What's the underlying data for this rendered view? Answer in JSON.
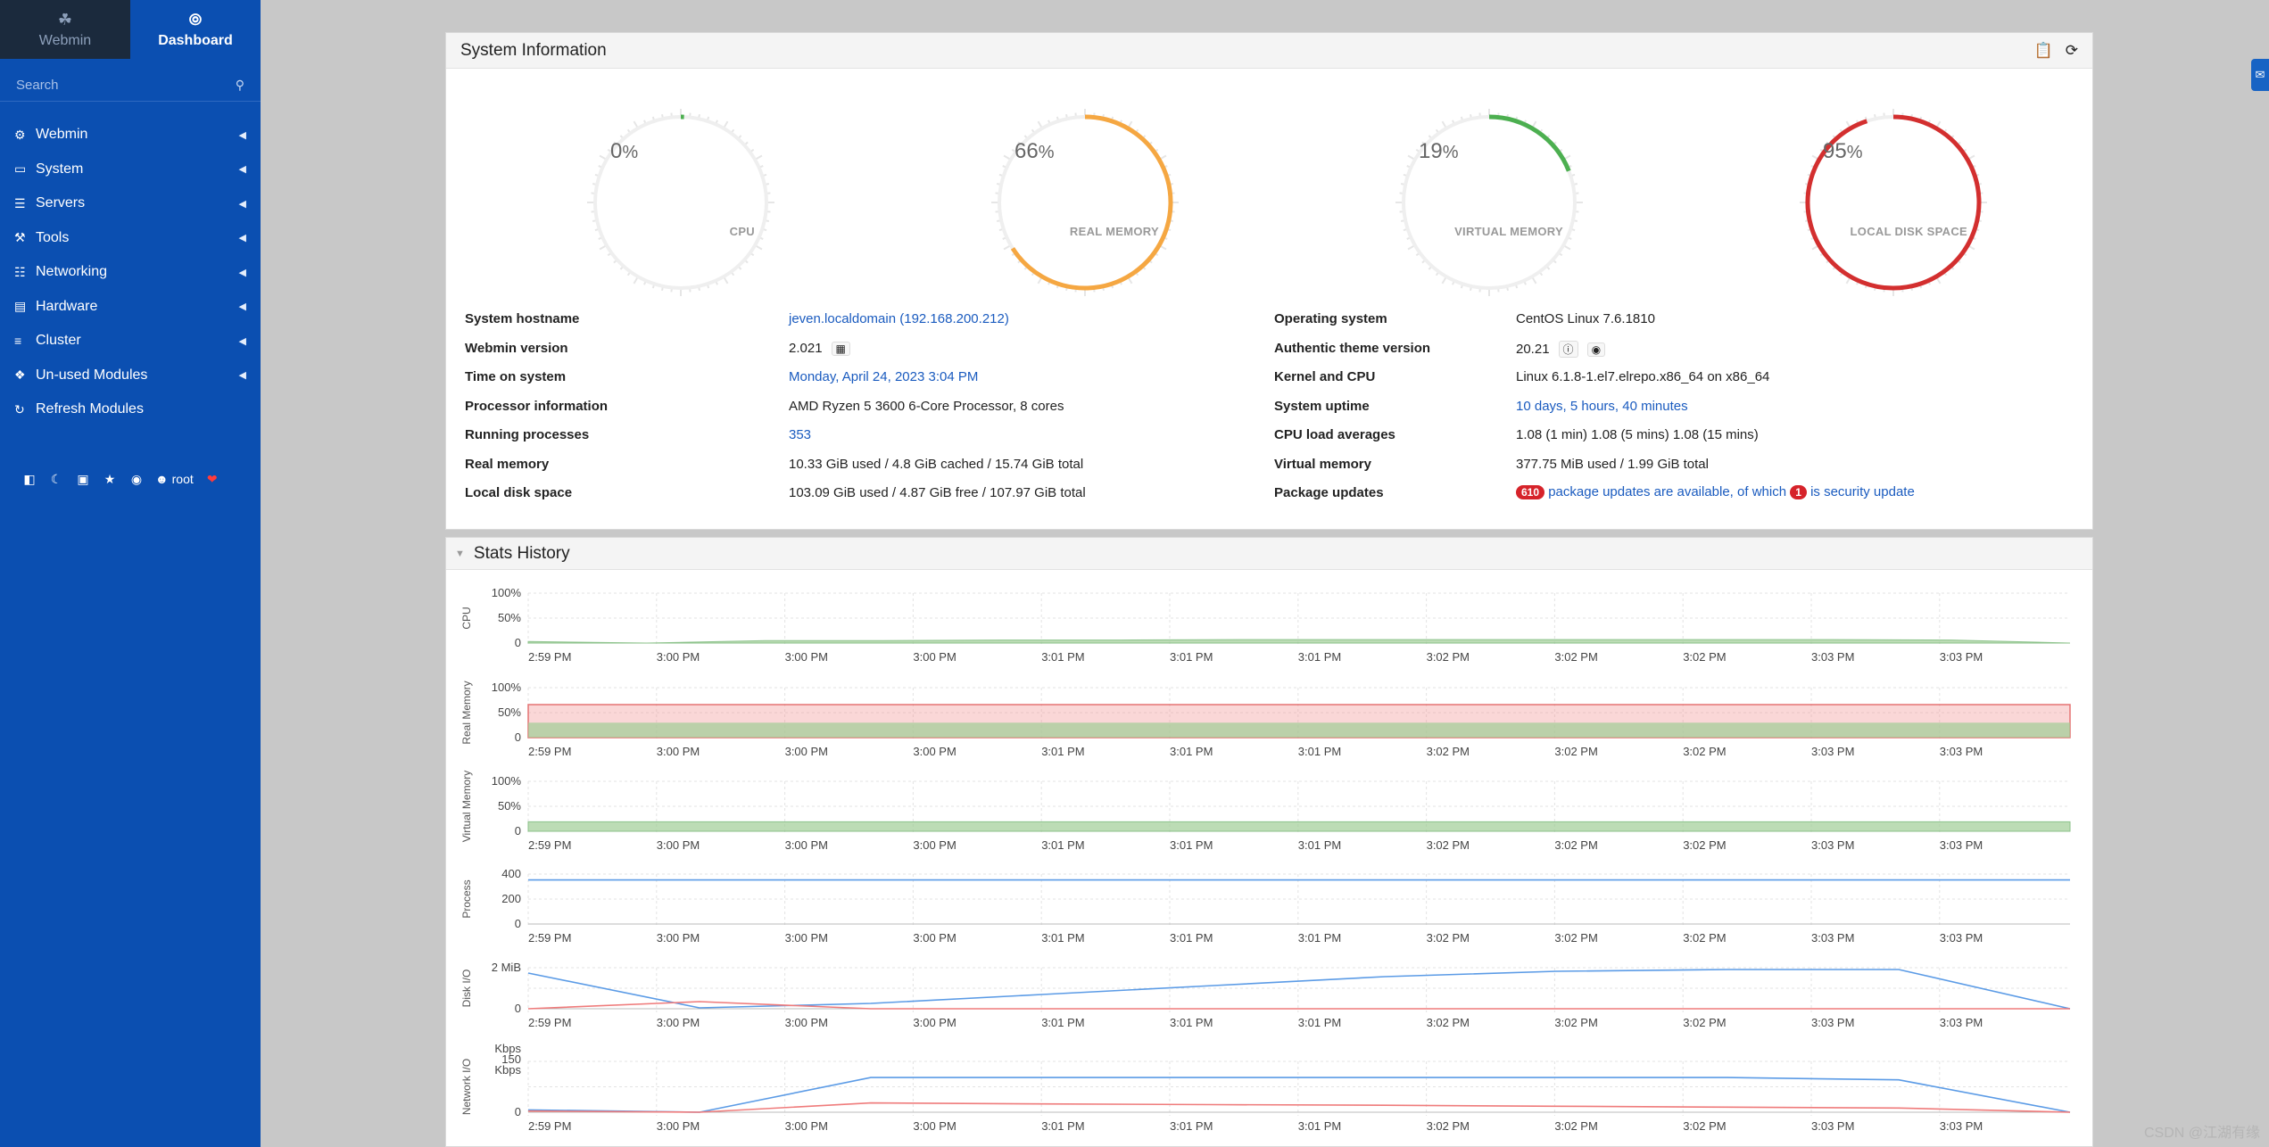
{
  "sidebar": {
    "tabs": [
      {
        "label": "Webmin",
        "icon": "webmin-logo-icon"
      },
      {
        "label": "Dashboard",
        "icon": "dashboard-icon"
      }
    ],
    "search_placeholder": "Search",
    "menu": [
      {
        "label": "Webmin",
        "icon": "gear-icon"
      },
      {
        "label": "System",
        "icon": "laptop-icon"
      },
      {
        "label": "Servers",
        "icon": "server-icon"
      },
      {
        "label": "Tools",
        "icon": "tools-icon"
      },
      {
        "label": "Networking",
        "icon": "network-icon"
      },
      {
        "label": "Hardware",
        "icon": "hard-drive-icon"
      },
      {
        "label": "Cluster",
        "icon": "layers-icon"
      },
      {
        "label": "Un-used Modules",
        "icon": "puzzle-icon"
      },
      {
        "label": "Refresh Modules",
        "icon": "refresh-icon"
      }
    ],
    "user": "root"
  },
  "sysinfo": {
    "title": "System Information",
    "gauges": [
      {
        "label": "CPU",
        "value": 0,
        "color": "#4caf50"
      },
      {
        "label": "REAL MEMORY",
        "value": 66,
        "color": "#f5a742"
      },
      {
        "label": "VIRTUAL MEMORY",
        "value": 19,
        "color": "#4caf50"
      },
      {
        "label": "LOCAL DISK SPACE",
        "value": 95,
        "color": "#d32f2f"
      }
    ],
    "pct_sign": "%",
    "left": [
      {
        "label": "System hostname",
        "value": "jeven.localdomain (192.168.200.212)",
        "link": true
      },
      {
        "label": "Webmin version",
        "value": "2.021",
        "link": false
      },
      {
        "label": "Time on system",
        "value": "Monday, April 24, 2023 3:04 PM",
        "link": true
      },
      {
        "label": "Processor information",
        "value": "AMD Ryzen 5 3600 6-Core Processor, 8 cores",
        "link": false
      },
      {
        "label": "Running processes",
        "value": "353",
        "link": true
      },
      {
        "label": "Real memory",
        "value": "10.33 GiB used / 4.8 GiB cached / 15.74 GiB total",
        "link": false
      },
      {
        "label": "Local disk space",
        "value": "103.09 GiB used / 4.87 GiB free / 107.97 GiB total",
        "link": false
      }
    ],
    "right": [
      {
        "label": "Operating system",
        "value": "CentOS Linux 7.6.1810",
        "link": false
      },
      {
        "label": "Authentic theme version",
        "value": "20.21",
        "link": false
      },
      {
        "label": "Kernel and CPU",
        "value": "Linux 6.1.8-1.el7.elrepo.x86_64 on x86_64",
        "link": false
      },
      {
        "label": "System uptime",
        "value": "10 days, 5 hours, 40 minutes",
        "link": true
      },
      {
        "label": "CPU load averages",
        "value": "1.08 (1 min) 1.08 (5 mins) 1.08 (15 mins)",
        "link": false
      },
      {
        "label": "Virtual memory",
        "value": "377.75 MiB used / 1.99 GiB total",
        "link": false
      }
    ],
    "package_updates": {
      "label": "Package updates",
      "count": "610",
      "text1": "package updates are available, of which",
      "security_count": "1",
      "text2": "is security update"
    }
  },
  "stats": {
    "title": "Stats History",
    "time_labels": [
      "2:59 PM",
      "3:00 PM",
      "3:00 PM",
      "3:00 PM",
      "3:01 PM",
      "3:01 PM",
      "3:01 PM",
      "3:02 PM",
      "3:02 PM",
      "3:02 PM",
      "3:03 PM",
      "3:03 PM"
    ],
    "charts": [
      {
        "name": "CPU",
        "ticks": [
          "100%",
          "50%",
          "0"
        ]
      },
      {
        "name": "Real Memory",
        "ticks": [
          "100%",
          "50%",
          "0"
        ]
      },
      {
        "name": "Virtual Memory",
        "ticks": [
          "100%",
          "50%",
          "0"
        ]
      },
      {
        "name": "Process",
        "ticks": [
          "400",
          "200",
          "0"
        ]
      },
      {
        "name": "Disk I/O",
        "ticks": [
          "2 MiB",
          "0"
        ]
      },
      {
        "name": "Network I/O",
        "ticks": [
          "Kbps",
          "150",
          "Kbps",
          "0"
        ]
      }
    ]
  },
  "chart_data": [
    {
      "type": "area",
      "title": "CPU",
      "ylim": [
        0,
        100
      ],
      "series": [
        {
          "values": [
            3,
            0,
            5,
            5,
            6,
            6,
            7,
            7,
            7,
            7,
            7,
            7,
            6,
            0
          ]
        }
      ]
    },
    {
      "type": "area",
      "title": "Real Memory",
      "ylim": [
        0,
        100
      ],
      "series": [
        {
          "name": "used",
          "values": [
            66,
            66,
            66,
            66
          ]
        },
        {
          "name": "cached",
          "values": [
            30,
            30,
            30,
            30
          ]
        }
      ]
    },
    {
      "type": "area",
      "title": "Virtual Memory",
      "ylim": [
        0,
        100
      ],
      "series": [
        {
          "values": [
            19,
            19,
            19,
            19
          ]
        }
      ]
    },
    {
      "type": "line",
      "title": "Process",
      "ylim": [
        0,
        400
      ],
      "series": [
        {
          "values": [
            353,
            353,
            353,
            353
          ]
        }
      ]
    },
    {
      "type": "line",
      "title": "Disk I/O",
      "ylim": [
        0,
        2.3
      ],
      "series": [
        {
          "values": [
            2.0,
            0.05,
            0.3,
            0.8,
            1.3,
            1.8,
            2.1,
            2.2,
            2.2,
            0
          ]
        },
        {
          "values": [
            0,
            0.4,
            0.0,
            0,
            0,
            0,
            0,
            0,
            0,
            0
          ]
        }
      ]
    },
    {
      "type": "line",
      "title": "Network I/O",
      "ylim": [
        0,
        220
      ],
      "series": [
        {
          "values": [
            10,
            0,
            150,
            150,
            150,
            150,
            150,
            150,
            140,
            0
          ]
        },
        {
          "values": [
            5,
            0,
            40,
            36,
            33,
            30,
            26,
            22,
            18,
            0
          ]
        }
      ]
    }
  ],
  "watermark": "CSDN @江湖有缘"
}
